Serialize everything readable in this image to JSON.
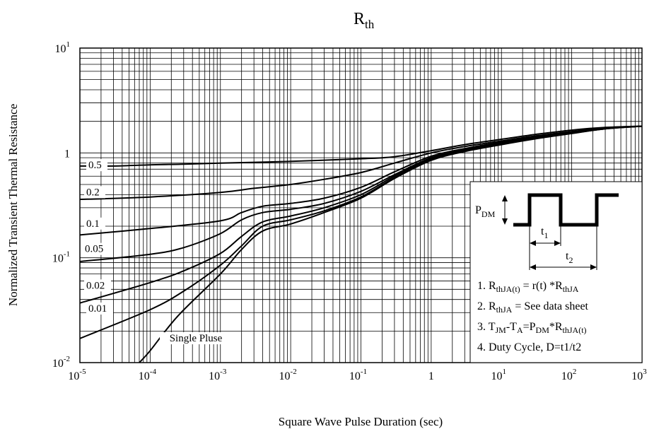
{
  "chart_data": {
    "type": "line",
    "title": "R",
    "title_sub": "th",
    "xlabel": "Square Wave Pulse Duration (sec)",
    "ylabel": "Normalized Transient Thermal Resistance",
    "x_scale": "log",
    "y_scale": "log",
    "xlim": [
      1e-05,
      1000
    ],
    "ylim": [
      0.01,
      10
    ],
    "grid": true,
    "x_ticks": [
      {
        "value": 1e-05,
        "base": "10",
        "exp": "-5"
      },
      {
        "value": 0.0001,
        "base": "10",
        "exp": "-4"
      },
      {
        "value": 0.001,
        "base": "10",
        "exp": "-3"
      },
      {
        "value": 0.01,
        "base": "10",
        "exp": "-2"
      },
      {
        "value": 0.1,
        "base": "10",
        "exp": "-1"
      },
      {
        "value": 1,
        "base": "1",
        "exp": ""
      },
      {
        "value": 10,
        "base": "10",
        "exp": "1"
      },
      {
        "value": 100,
        "base": "10",
        "exp": "2"
      },
      {
        "value": 1000,
        "base": "10",
        "exp": "3"
      }
    ],
    "y_ticks": [
      {
        "value": 0.01,
        "base": "10",
        "exp": "-2"
      },
      {
        "value": 0.1,
        "base": "10",
        "exp": "-1"
      },
      {
        "value": 1,
        "base": "1",
        "exp": ""
      },
      {
        "value": 10,
        "base": "10",
        "exp": "1"
      }
    ],
    "series": [
      {
        "name": "0.5",
        "x": [
          1e-05,
          3e-05,
          0.0001,
          0.0003,
          0.001,
          0.01,
          0.1,
          0.3,
          1,
          3,
          10,
          30,
          100,
          300,
          1000
        ],
        "y": [
          0.75,
          0.75,
          0.77,
          0.78,
          0.8,
          0.83,
          0.88,
          0.92,
          1.05,
          1.2,
          1.35,
          1.5,
          1.65,
          1.75,
          1.8
        ]
      },
      {
        "name": "0.2",
        "x": [
          1e-05,
          0.0001,
          0.001,
          0.003,
          0.01,
          0.03,
          0.1,
          0.3,
          1,
          3,
          10,
          30,
          100,
          300,
          1000
        ],
        "y": [
          0.36,
          0.38,
          0.42,
          0.46,
          0.5,
          0.56,
          0.65,
          0.8,
          1.0,
          1.15,
          1.3,
          1.45,
          1.6,
          1.72,
          1.8
        ]
      },
      {
        "name": "0.1",
        "x": [
          1e-05,
          0.0001,
          0.001,
          0.002,
          0.004,
          0.01,
          0.03,
          0.1,
          0.3,
          1,
          3,
          10,
          30,
          100,
          300,
          1000
        ],
        "y": [
          0.165,
          0.19,
          0.225,
          0.27,
          0.31,
          0.33,
          0.37,
          0.47,
          0.66,
          0.93,
          1.1,
          1.27,
          1.42,
          1.58,
          1.72,
          1.8
        ]
      },
      {
        "name": "0.05",
        "x": [
          1e-05,
          0.0001,
          0.0003,
          0.001,
          0.002,
          0.004,
          0.01,
          0.03,
          0.1,
          0.3,
          1,
          3,
          10,
          30,
          100,
          300,
          1000
        ],
        "y": [
          0.092,
          0.108,
          0.125,
          0.17,
          0.23,
          0.27,
          0.29,
          0.33,
          0.43,
          0.62,
          0.9,
          1.08,
          1.25,
          1.4,
          1.56,
          1.71,
          1.8
        ]
      },
      {
        "name": "0.02",
        "x": [
          1e-05,
          0.0001,
          0.0003,
          0.001,
          0.002,
          0.004,
          0.01,
          0.03,
          0.1,
          0.3,
          1,
          3,
          10,
          30,
          100,
          300,
          1000
        ],
        "y": [
          0.037,
          0.058,
          0.075,
          0.11,
          0.16,
          0.22,
          0.25,
          0.3,
          0.4,
          0.6,
          0.88,
          1.06,
          1.23,
          1.38,
          1.55,
          1.7,
          1.8
        ]
      },
      {
        "name": "0.01",
        "x": [
          1e-05,
          0.0001,
          0.0003,
          0.001,
          0.002,
          0.004,
          0.01,
          0.03,
          0.1,
          0.3,
          1,
          3,
          10,
          30,
          100,
          300,
          1000
        ],
        "y": [
          0.017,
          0.032,
          0.048,
          0.085,
          0.13,
          0.2,
          0.23,
          0.28,
          0.38,
          0.58,
          0.86,
          1.04,
          1.21,
          1.37,
          1.54,
          1.7,
          1.8
        ]
      },
      {
        "name": "Single Pluse",
        "x": [
          7e-05,
          0.0001,
          0.00025,
          0.001,
          0.002,
          0.004,
          0.01,
          0.03,
          0.1,
          0.3,
          1,
          3,
          10,
          30,
          100,
          300,
          1000
        ],
        "y": [
          0.01,
          0.013,
          0.028,
          0.07,
          0.12,
          0.18,
          0.21,
          0.27,
          0.37,
          0.57,
          0.85,
          1.03,
          1.2,
          1.36,
          1.53,
          1.7,
          1.8
        ]
      }
    ],
    "legend_box": {
      "p_dm_label": "P",
      "p_dm_sub": "DM",
      "t1_label": "t",
      "t1_sub": "1",
      "t2_label": "t",
      "t2_sub": "2",
      "notes": [
        [
          {
            "t": "1. R"
          },
          {
            "t": "thJA(t)",
            "sub": true
          },
          {
            "t": " = r(t) *R"
          },
          {
            "t": "thJA",
            "sub": true
          }
        ],
        [
          {
            "t": "2. R"
          },
          {
            "t": "thJA",
            "sub": true
          },
          {
            "t": " = See data sheet"
          }
        ],
        [
          {
            "t": "3. T"
          },
          {
            "t": "JM",
            "sub": true
          },
          {
            "t": "-T"
          },
          {
            "t": "A",
            "sub": true
          },
          {
            "t": "=P"
          },
          {
            "t": "DM",
            "sub": true
          },
          {
            "t": "*R"
          },
          {
            "t": "thJA(t)",
            "sub": true
          }
        ],
        [
          {
            "t": "4. Duty Cycle, D=t1/t2"
          }
        ]
      ]
    }
  }
}
